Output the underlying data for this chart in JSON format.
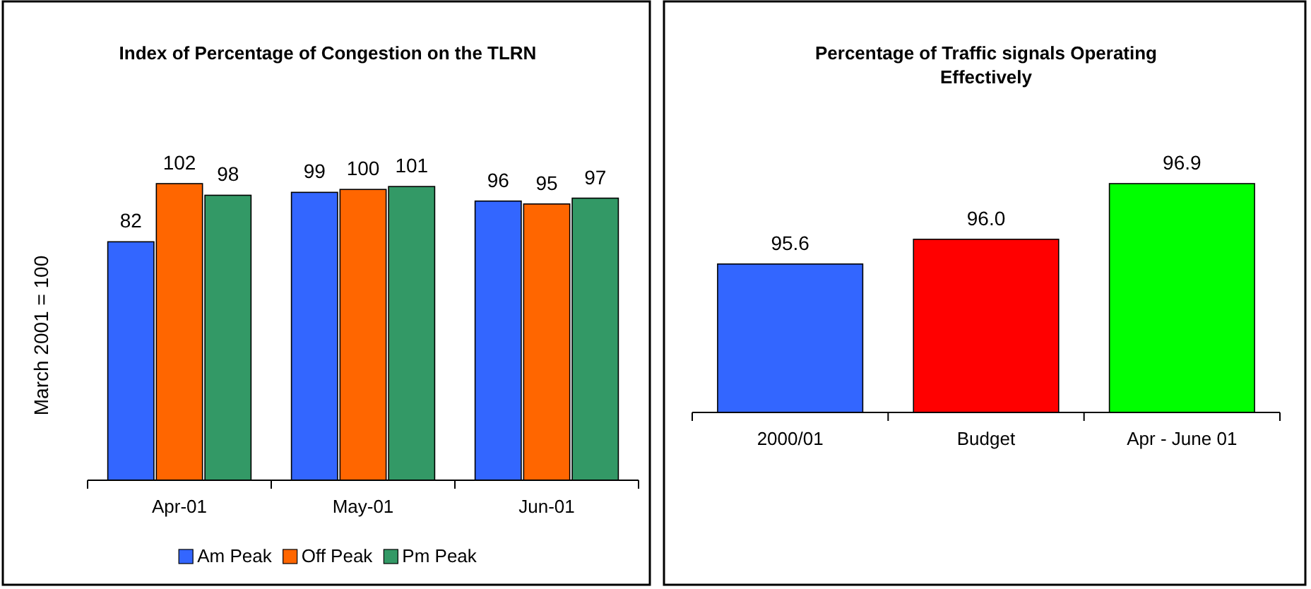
{
  "chart_data": [
    {
      "type": "bar",
      "title": "Index of Percentage of Congestion on the TLRN",
      "ylabel": "March 2001 = 100",
      "categories": [
        "Apr-01",
        "May-01",
        "Jun-01"
      ],
      "series": [
        {
          "name": "Am Peak",
          "color": "#3366ff",
          "values": [
            82,
            99,
            96
          ]
        },
        {
          "name": "Off Peak",
          "color": "#ff6600",
          "values": [
            102,
            100,
            95
          ]
        },
        {
          "name": "Pm Peak",
          "color": "#339966",
          "values": [
            98,
            101,
            97
          ]
        }
      ],
      "data_labels": true,
      "legend": "bottom"
    },
    {
      "type": "bar",
      "title": "Percentage of Traffic signals Operating Effectively",
      "categories": [
        "2000/01",
        "Budget",
        "Apr - June 01"
      ],
      "values": [
        95.6,
        96.0,
        96.9
      ],
      "value_labels": [
        "95.6",
        "96.0",
        "96.9"
      ],
      "colors": [
        "#3366ff",
        "#ff0000",
        "#00ff00"
      ],
      "ylim": [
        93.2,
        96.9
      ]
    }
  ]
}
